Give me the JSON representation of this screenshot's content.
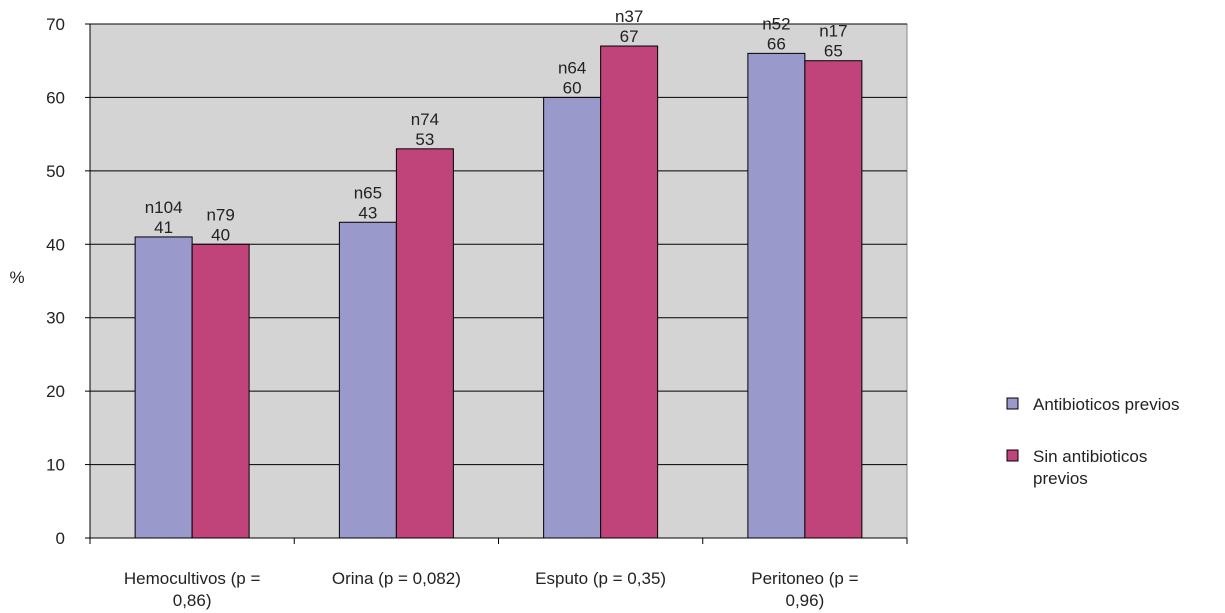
{
  "chart_data": {
    "type": "bar",
    "ylabel": "%",
    "ylim": [
      0,
      70
    ],
    "yticks": [
      "0",
      "10",
      "20",
      "30",
      "40",
      "50",
      "60",
      "70"
    ],
    "grid": true,
    "legend_position": "right",
    "categories": [
      [
        "Hemocultivos (p =",
        "0,86)"
      ],
      [
        "Orina (p = 0,082)"
      ],
      [
        "Esputo (p = 0,35)"
      ],
      [
        "Peritoneo (p =",
        "0,96)"
      ]
    ],
    "series": [
      {
        "name": [
          "Antibioticos previos"
        ],
        "color": "#9999cc",
        "values": [
          41,
          43,
          60,
          66
        ],
        "labels": [
          [
            "n104",
            "41"
          ],
          [
            "n65",
            "43"
          ],
          [
            "n64",
            "60"
          ],
          [
            "n52",
            "66"
          ]
        ]
      },
      {
        "name": [
          "Sin antibioticos",
          "previos"
        ],
        "color": "#c0437a",
        "values": [
          40,
          53,
          67,
          65
        ],
        "labels": [
          [
            "n79",
            "40"
          ],
          [
            "n74",
            "53"
          ],
          [
            "n37",
            "67"
          ],
          [
            "n17",
            "65"
          ]
        ]
      }
    ],
    "colors": {
      "plot_background": "#d4d4d4",
      "gridline": "#000000"
    }
  }
}
